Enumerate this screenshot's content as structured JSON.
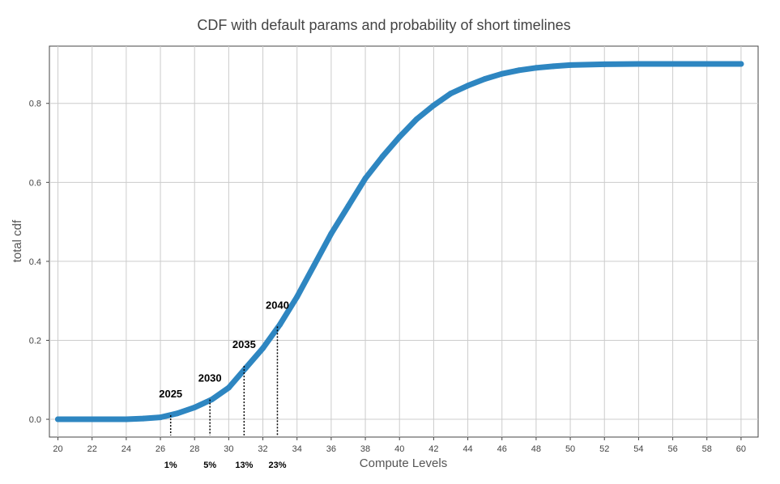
{
  "chart_data": {
    "type": "line",
    "title": "CDF with default params and probability of short timelines",
    "xlabel": "Compute Levels",
    "ylabel": "total cdf",
    "xlim": [
      19.5,
      61
    ],
    "ylim": [
      -0.045,
      0.945
    ],
    "grid": true,
    "x_ticks": [
      20,
      22,
      24,
      26,
      28,
      30,
      32,
      34,
      36,
      38,
      40,
      42,
      44,
      46,
      48,
      50,
      52,
      54,
      56,
      58,
      60
    ],
    "y_ticks": [
      0.0,
      0.2,
      0.4,
      0.6,
      0.8
    ],
    "y_tick_labels": [
      "0.0",
      "0.2",
      "0.4",
      "0.6",
      "0.8"
    ],
    "series": [
      {
        "color": "#2e86c1",
        "points": [
          [
            20,
            0.0
          ],
          [
            22,
            0.0
          ],
          [
            24,
            0.0
          ],
          [
            25,
            0.002
          ],
          [
            26,
            0.005
          ],
          [
            27,
            0.015
          ],
          [
            28,
            0.03
          ],
          [
            29,
            0.05
          ],
          [
            30,
            0.08
          ],
          [
            31,
            0.13
          ],
          [
            32,
            0.18
          ],
          [
            33,
            0.24
          ],
          [
            34,
            0.31
          ],
          [
            35,
            0.39
          ],
          [
            36,
            0.47
          ],
          [
            37,
            0.54
          ],
          [
            38,
            0.61
          ],
          [
            39,
            0.665
          ],
          [
            40,
            0.715
          ],
          [
            41,
            0.76
          ],
          [
            42,
            0.795
          ],
          [
            43,
            0.825
          ],
          [
            44,
            0.845
          ],
          [
            45,
            0.862
          ],
          [
            46,
            0.875
          ],
          [
            47,
            0.884
          ],
          [
            48,
            0.89
          ],
          [
            49,
            0.894
          ],
          [
            50,
            0.897
          ],
          [
            52,
            0.899
          ],
          [
            54,
            0.9
          ],
          [
            56,
            0.9
          ],
          [
            58,
            0.9
          ],
          [
            60,
            0.9
          ]
        ]
      }
    ],
    "annotations": [
      {
        "year": "2025",
        "pct": "1%",
        "x": 26.6,
        "y": 0.01
      },
      {
        "year": "2030",
        "pct": "5%",
        "x": 28.9,
        "y": 0.05
      },
      {
        "year": "2035",
        "pct": "13%",
        "x": 30.9,
        "y": 0.135
      },
      {
        "year": "2040",
        "pct": "23%",
        "x": 32.85,
        "y": 0.235
      }
    ]
  }
}
